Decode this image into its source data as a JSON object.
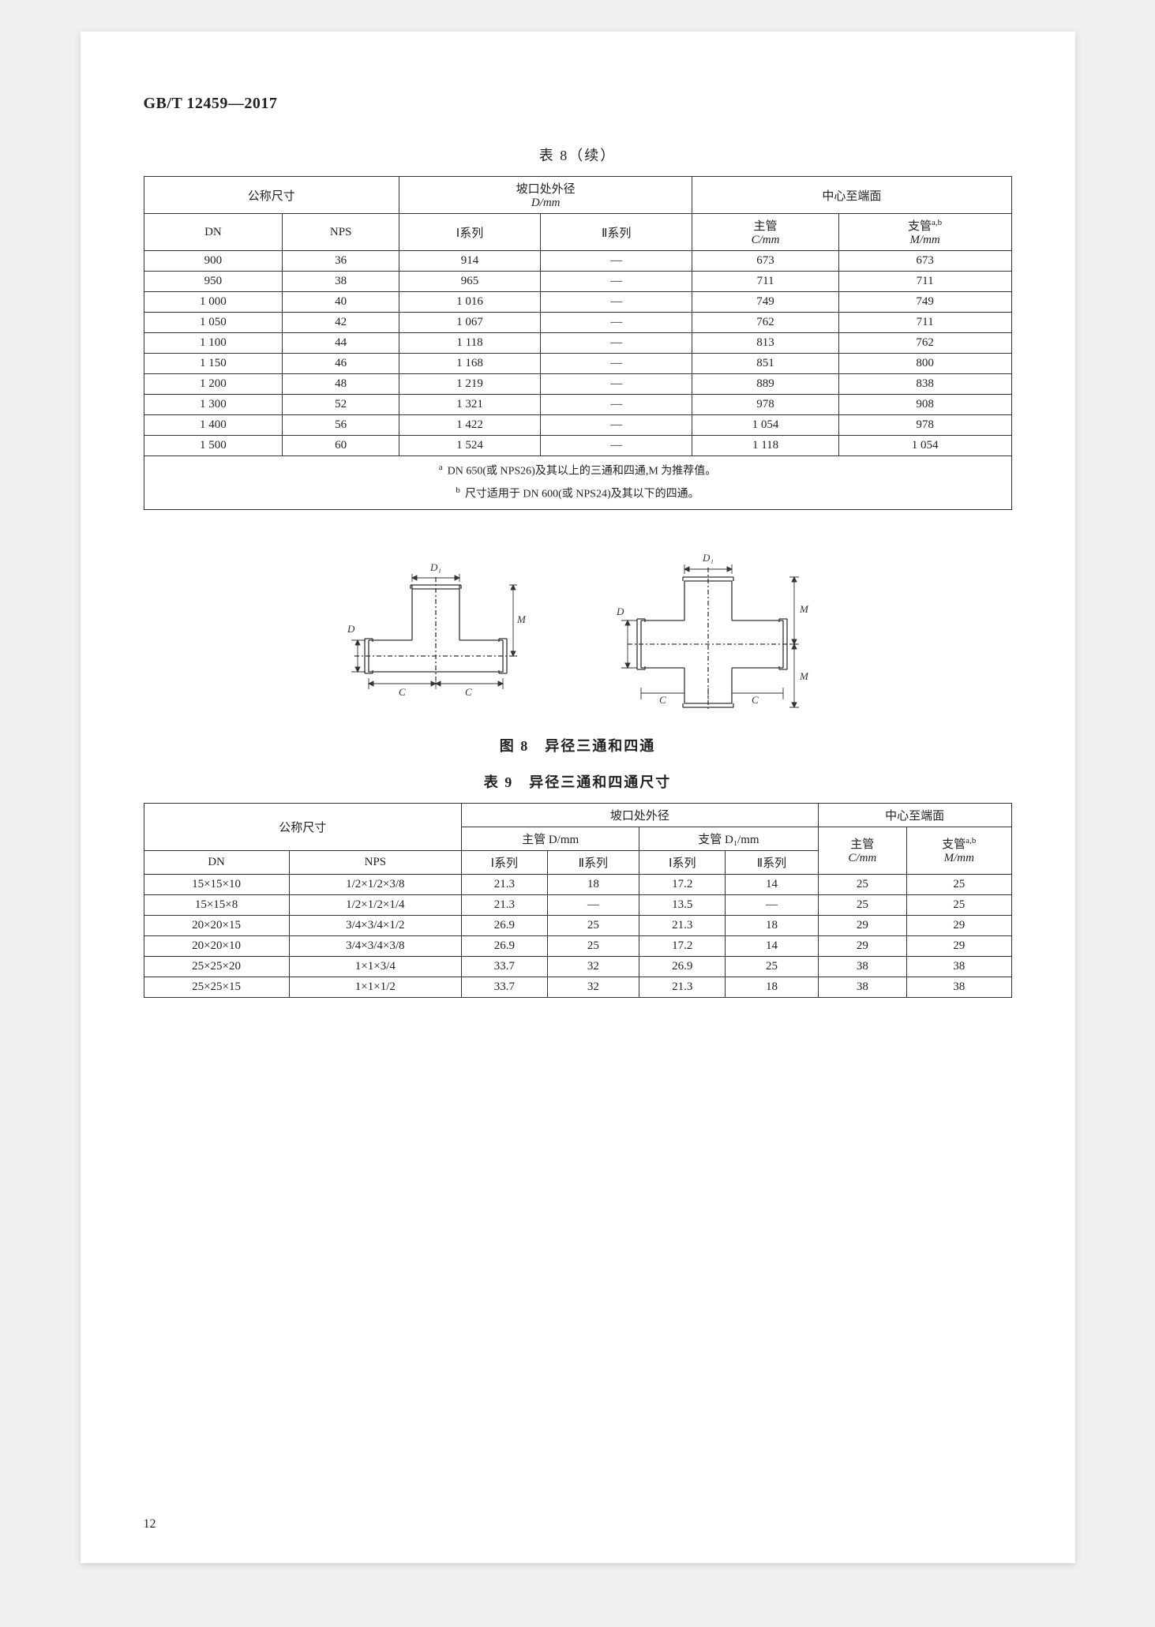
{
  "standardId": "GB/T 12459—2017",
  "pageNumber": "12",
  "table8": {
    "caption": "表 8（续）",
    "head": {
      "group_nominal": "公称尺寸",
      "group_bevel": "坡口处外径",
      "group_bevel_unit": "D/mm",
      "group_center": "中心至端面",
      "DN": "DN",
      "NPS": "NPS",
      "series1": "Ⅰ系列",
      "series2": "Ⅱ系列",
      "C_label": "主管",
      "C_unit": "C/mm",
      "M_label": "支管",
      "M_unit": "M/mm",
      "M_sup": "a,b"
    },
    "rows": [
      {
        "dn": "900",
        "nps": "36",
        "s1": "914",
        "s2": "—",
        "c": "673",
        "m": "673"
      },
      {
        "dn": "950",
        "nps": "38",
        "s1": "965",
        "s2": "—",
        "c": "711",
        "m": "711"
      },
      {
        "dn": "1 000",
        "nps": "40",
        "s1": "1 016",
        "s2": "—",
        "c": "749",
        "m": "749"
      },
      {
        "dn": "1 050",
        "nps": "42",
        "s1": "1 067",
        "s2": "—",
        "c": "762",
        "m": "711"
      },
      {
        "dn": "1 100",
        "nps": "44",
        "s1": "1 118",
        "s2": "—",
        "c": "813",
        "m": "762"
      },
      {
        "dn": "1 150",
        "nps": "46",
        "s1": "1 168",
        "s2": "—",
        "c": "851",
        "m": "800"
      },
      {
        "dn": "1 200",
        "nps": "48",
        "s1": "1 219",
        "s2": "—",
        "c": "889",
        "m": "838"
      },
      {
        "dn": "1 300",
        "nps": "52",
        "s1": "1 321",
        "s2": "—",
        "c": "978",
        "m": "908"
      },
      {
        "dn": "1 400",
        "nps": "56",
        "s1": "1 422",
        "s2": "—",
        "c": "1 054",
        "m": "978"
      },
      {
        "dn": "1 500",
        "nps": "60",
        "s1": "1 524",
        "s2": "—",
        "c": "1 118",
        "m": "1 054"
      }
    ],
    "note_a_mark": "a",
    "note_a": "DN 650(或 NPS26)及其以上的三通和四通,M 为推荐值。",
    "note_b_mark": "b",
    "note_b": "尺寸适用于 DN 600(或 NPS24)及其以下的四通。"
  },
  "figure8": {
    "caption": "图 8　异径三通和四通"
  },
  "diagramLabels": {
    "D1": "D₁",
    "D": "D",
    "M": "M",
    "C": "C"
  },
  "diagramStyle": {
    "stroke": "#333",
    "strokeWidth": 1,
    "fill": "none",
    "textSize": "13px"
  },
  "table9": {
    "caption": "表 9　异径三通和四通尺寸",
    "head": {
      "group_nominal": "公称尺寸",
      "group_bevel": "坡口处外径",
      "group_center": "中心至端面",
      "main_D": "主管 D/mm",
      "branch_D1": "支管 D₁/mm",
      "DN": "DN",
      "NPS": "NPS",
      "series1": "Ⅰ系列",
      "series2": "Ⅱ系列",
      "C_label": "主管",
      "C_unit": "C/mm",
      "M_label": "支管",
      "M_sup": "a,b",
      "M_unit": "M/mm"
    },
    "rows": [
      {
        "dn": "15×15×10",
        "nps": "1/2×1/2×3/8",
        "d1": "21.3",
        "d2": "18",
        "b1": "17.2",
        "b2": "14",
        "c": "25",
        "m": "25"
      },
      {
        "dn": "15×15×8",
        "nps": "1/2×1/2×1/4",
        "d1": "21.3",
        "d2": "—",
        "b1": "13.5",
        "b2": "—",
        "c": "25",
        "m": "25"
      },
      {
        "dn": "20×20×15",
        "nps": "3/4×3/4×1/2",
        "d1": "26.9",
        "d2": "25",
        "b1": "21.3",
        "b2": "18",
        "c": "29",
        "m": "29"
      },
      {
        "dn": "20×20×10",
        "nps": "3/4×3/4×3/8",
        "d1": "26.9",
        "d2": "25",
        "b1": "17.2",
        "b2": "14",
        "c": "29",
        "m": "29"
      },
      {
        "dn": "25×25×20",
        "nps": "1×1×3/4",
        "d1": "33.7",
        "d2": "32",
        "b1": "26.9",
        "b2": "25",
        "c": "38",
        "m": "38"
      },
      {
        "dn": "25×25×15",
        "nps": "1×1×1/2",
        "d1": "33.7",
        "d2": "32",
        "b1": "21.3",
        "b2": "18",
        "c": "38",
        "m": "38"
      }
    ]
  }
}
